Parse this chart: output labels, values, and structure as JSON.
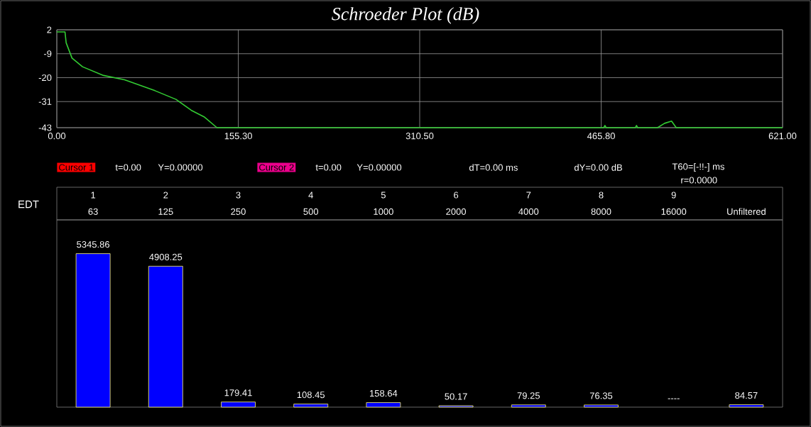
{
  "chart_data": [
    {
      "type": "line",
      "title": "Schroeder Plot (dB)",
      "grid": true,
      "xlim": [
        0,
        621
      ],
      "xticks": [
        {
          "value": 0,
          "label": "0.00"
        },
        {
          "value": 155.3,
          "label": "155.30"
        },
        {
          "value": 310.5,
          "label": "310.50"
        },
        {
          "value": 465.8,
          "label": "465.80"
        },
        {
          "value": 621,
          "label": "621.00"
        }
      ],
      "ylim": [
        -43,
        2
      ],
      "yticks": [
        2,
        -9,
        -20,
        -31,
        -43
      ],
      "x": [
        0,
        7,
        8,
        13,
        22,
        40,
        58,
        84,
        102,
        115,
        126,
        137,
        468,
        469,
        470,
        495,
        496,
        497,
        514,
        520,
        526,
        530,
        621
      ],
      "series": [
        {
          "color": "#33cc33",
          "values": [
            1,
            1,
            -4,
            -11,
            -15,
            -19,
            -21,
            -26,
            -30,
            -35,
            -38,
            -43,
            -43,
            -42,
            -43,
            -43,
            -42,
            -43,
            -43,
            -41,
            -40,
            -43,
            -43
          ]
        }
      ],
      "annotations": [
        "Cursor 1",
        "t=0.00",
        "Y=0.00000",
        "Cursor 2",
        "t=0.00",
        "Y=0.00000",
        "dT=0.00 ms",
        "dY=0.00 dB",
        "T60=[-!!-] ms",
        "r=0.0000"
      ]
    },
    {
      "type": "bar",
      "tick_labels": "x",
      "categories": [
        "63",
        "125",
        "250",
        "500",
        "1000",
        "2000",
        "4000",
        "8000",
        "16000",
        "Unfiltered"
      ],
      "series": [
        {
          "color": "#0000ff",
          "values": [
            5345.86,
            4908.25,
            179.41,
            108.45,
            158.64,
            50.17,
            79.25,
            76.35,
            null,
            84.57
          ],
          "value_labels": [
            "5345.86",
            "4908.25",
            "179.41",
            "108.45",
            "158.64",
            "50.17",
            "79.25",
            "76.35",
            "----",
            "84.57"
          ]
        }
      ],
      "annotations": [
        "EDT",
        "1",
        "2",
        "3",
        "4",
        "5",
        "6",
        "7",
        "8",
        "9"
      ]
    }
  ]
}
